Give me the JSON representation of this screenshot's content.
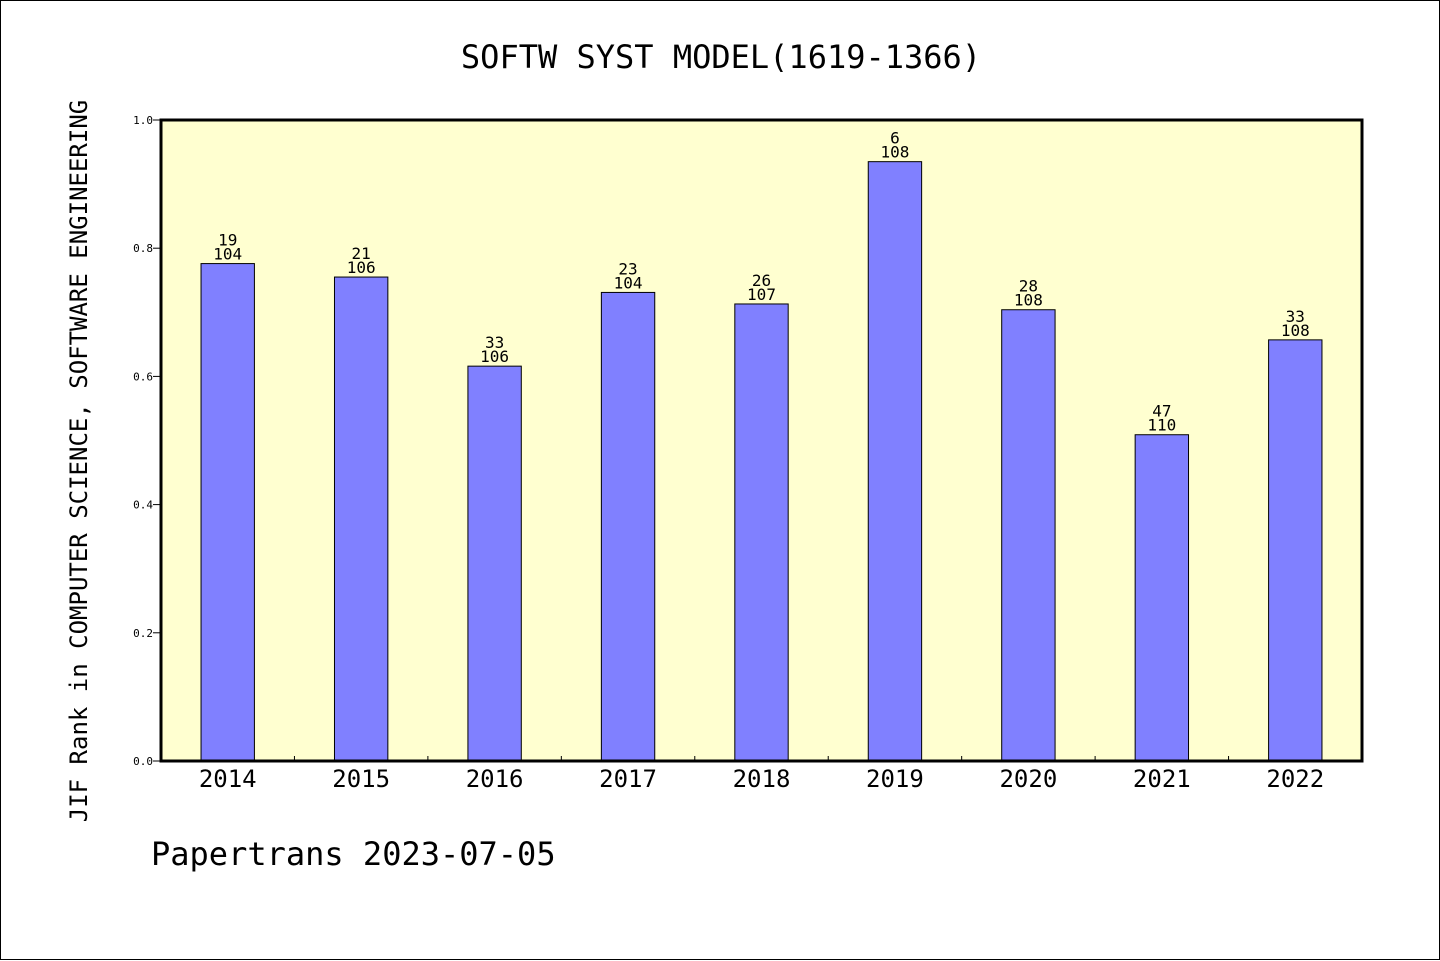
{
  "chart_data": {
    "type": "bar",
    "title": "SOFTW SYST MODEL(1619-1366)",
    "ylabel": "JIF Rank in COMPUTER SCIENCE, SOFTWARE ENGINEERING",
    "xlabel": "",
    "ylim": [
      0,
      1.0
    ],
    "yticks": [
      "0.0",
      "0.2",
      "0.4",
      "0.6",
      "0.8",
      "1.0"
    ],
    "categories": [
      "2014",
      "2015",
      "2016",
      "2017",
      "2018",
      "2019",
      "2020",
      "2021",
      "2022"
    ],
    "values": [
      0.776,
      0.755,
      0.616,
      0.731,
      0.713,
      0.935,
      0.704,
      0.509,
      0.657
    ],
    "rank_labels": [
      "19",
      "21",
      "33",
      "23",
      "26",
      "6",
      "28",
      "47",
      "33"
    ],
    "total_labels": [
      "104",
      "106",
      "106",
      "104",
      "107",
      "108",
      "108",
      "110",
      "108"
    ],
    "footer": "Papertrans 2023-07-05",
    "colors": {
      "plot_bg": "#ffffd0",
      "bar_fill": "#8080ff",
      "bar_stroke": "#000000"
    }
  }
}
